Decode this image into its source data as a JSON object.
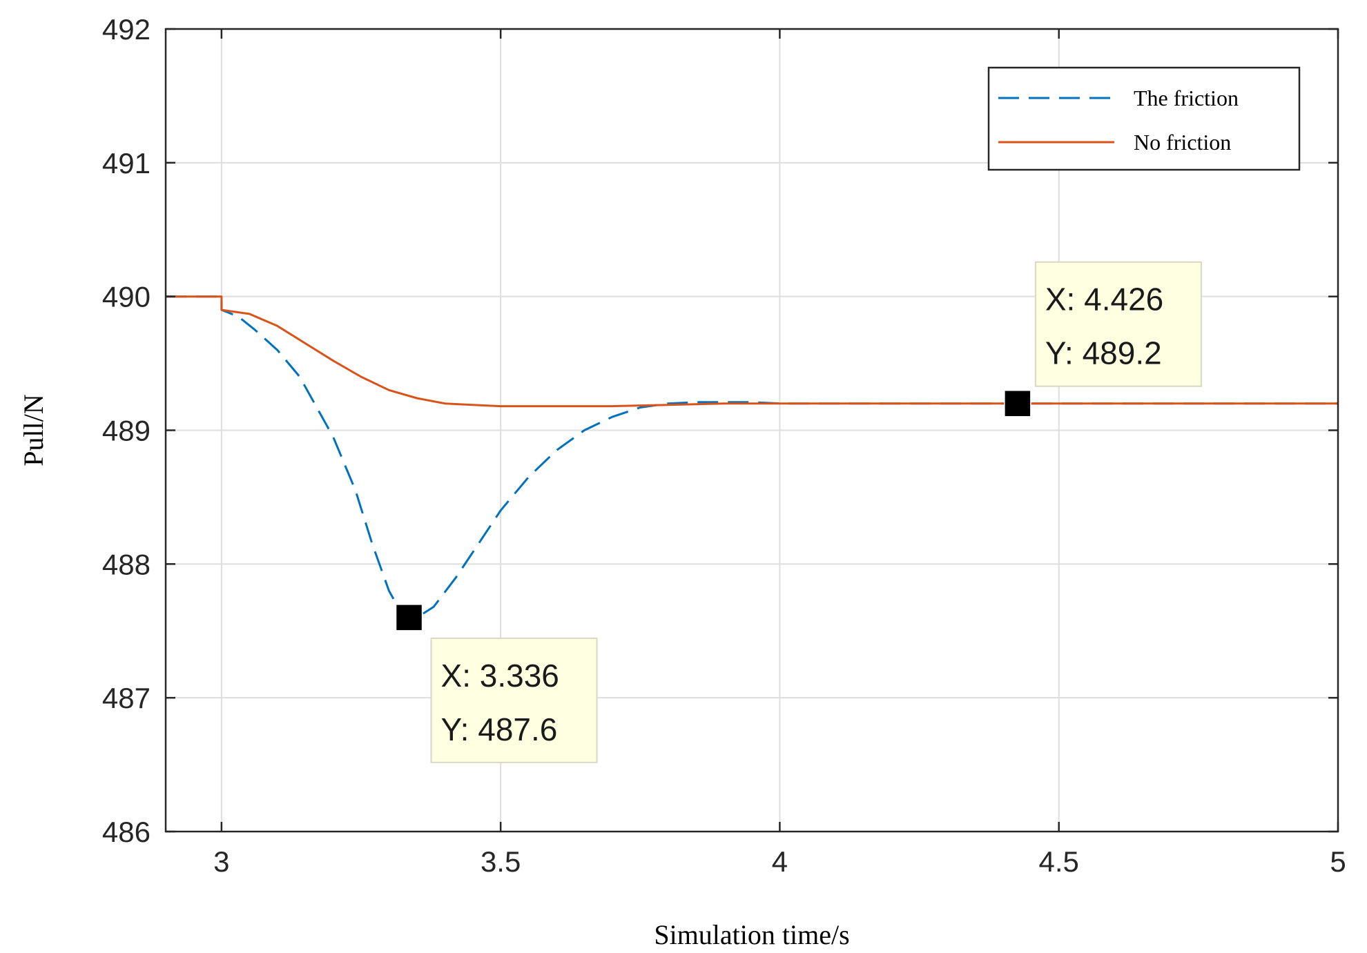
{
  "chart_data": {
    "type": "line",
    "title": "",
    "xlabel": "Simulation time/s",
    "ylabel": "Pull/N",
    "xlim": [
      2.9,
      5
    ],
    "ylim": [
      486,
      492
    ],
    "xticks": [
      3,
      3.5,
      4,
      4.5,
      5
    ],
    "xtick_labels": [
      "3",
      "3.5",
      "4",
      "4.5",
      "5"
    ],
    "yticks": [
      486,
      487,
      488,
      489,
      490,
      491,
      492
    ],
    "ytick_labels": [
      "486",
      "487",
      "488",
      "489",
      "490",
      "491",
      "492"
    ],
    "grid": true,
    "legend_position": "top-right",
    "series": [
      {
        "name": "The friction",
        "style": "dashed",
        "color": "#0072BD",
        "x": [
          2.9,
          3.0,
          3.0,
          3.03,
          3.06,
          3.1,
          3.14,
          3.18,
          3.2,
          3.24,
          3.27,
          3.3,
          3.32,
          3.336,
          3.35,
          3.38,
          3.42,
          3.46,
          3.5,
          3.55,
          3.6,
          3.65,
          3.7,
          3.75,
          3.8,
          3.85,
          3.9,
          3.95,
          4.0,
          4.05,
          4.1,
          4.2,
          4.3,
          4.426,
          4.6,
          4.8,
          5.0
        ],
        "y": [
          490.0,
          490.0,
          489.9,
          489.85,
          489.75,
          489.6,
          489.4,
          489.1,
          488.95,
          488.55,
          488.15,
          487.8,
          487.65,
          487.6,
          487.6,
          487.68,
          487.9,
          488.15,
          488.4,
          488.65,
          488.85,
          489.0,
          489.1,
          489.17,
          489.2,
          489.21,
          489.21,
          489.21,
          489.2,
          489.2,
          489.2,
          489.2,
          489.2,
          489.2,
          489.2,
          489.2,
          489.2
        ]
      },
      {
        "name": "No friction",
        "style": "solid",
        "color": "#D95319",
        "x": [
          2.9,
          3.0,
          3.0,
          3.05,
          3.1,
          3.15,
          3.2,
          3.25,
          3.3,
          3.35,
          3.4,
          3.45,
          3.5,
          3.55,
          3.6,
          3.7,
          3.8,
          3.9,
          4.0,
          4.2,
          4.4,
          4.6,
          4.8,
          5.0
        ],
        "y": [
          490.0,
          490.0,
          489.9,
          489.87,
          489.78,
          489.65,
          489.52,
          489.4,
          489.3,
          489.24,
          489.2,
          489.19,
          489.18,
          489.18,
          489.18,
          489.18,
          489.19,
          489.2,
          489.2,
          489.2,
          489.2,
          489.2,
          489.2,
          489.2
        ]
      }
    ],
    "annotations": [
      {
        "x": 3.336,
        "y": 487.6,
        "label_x": "X: 3.336",
        "label_y": "Y: 487.6",
        "placement": "below-right"
      },
      {
        "x": 4.426,
        "y": 489.2,
        "label_x": "X: 4.426",
        "label_y": "Y: 489.2",
        "placement": "above"
      }
    ]
  }
}
